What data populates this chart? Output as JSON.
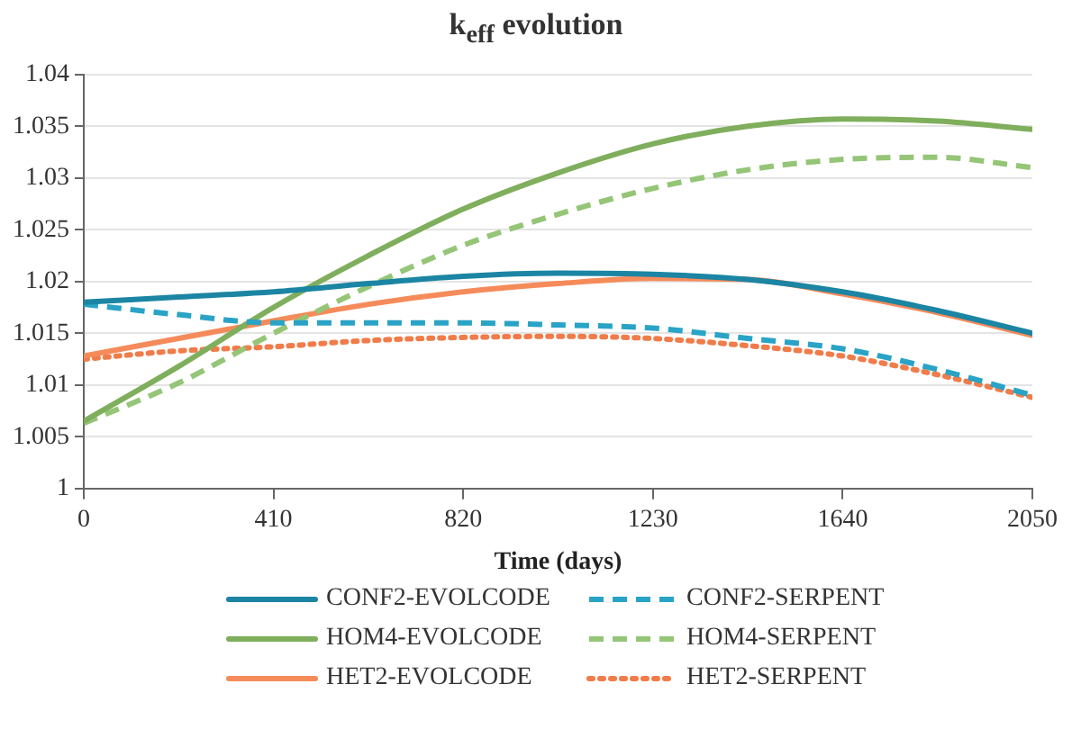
{
  "chart_data": {
    "type": "line",
    "title": "k$_{eff}$ evolution",
    "xlabel": "Time (days)",
    "x": [
      0,
      205,
      410,
      615,
      820,
      1025,
      1230,
      1435,
      1640,
      1845,
      2050
    ],
    "xlim": [
      0,
      2050
    ],
    "xticks": [
      0,
      410,
      820,
      1230,
      1640,
      2050
    ],
    "ylim": [
      1,
      1.04
    ],
    "yticks": [
      1,
      1.005,
      1.01,
      1.015,
      1.02,
      1.025,
      1.03,
      1.035,
      1.04
    ],
    "grid": "y",
    "legend": "bottom",
    "marker": "none",
    "series": [
      {
        "name": "CONF2-EVOLCODE",
        "color": "#1b85a3",
        "line_style": "solid",
        "values": [
          1.018,
          1.0185,
          1.019,
          1.0198,
          1.0205,
          1.0208,
          1.0207,
          1.0202,
          1.019,
          1.0172,
          1.015
        ]
      },
      {
        "name": "CONF2-SERPENT",
        "color": "#29a3c6",
        "line_style": "dashed",
        "values": [
          1.0178,
          1.0168,
          1.016,
          1.016,
          1.016,
          1.0158,
          1.0155,
          1.0145,
          1.0135,
          1.0115,
          1.009
        ]
      },
      {
        "name": "HOM4-EVOLCODE",
        "color": "#7fae5c",
        "line_style": "solid",
        "values": [
          1.0065,
          1.0118,
          1.0175,
          1.0225,
          1.027,
          1.0305,
          1.0333,
          1.035,
          1.0357,
          1.0355,
          1.0347
        ]
      },
      {
        "name": "HOM4-SERPENT",
        "color": "#95c577",
        "line_style": "dashed",
        "values": [
          1.0063,
          1.0102,
          1.015,
          1.0195,
          1.0235,
          1.0265,
          1.029,
          1.0308,
          1.0318,
          1.032,
          1.031
        ]
      },
      {
        "name": "HET2-EVOLCODE",
        "color": "#f58b5a",
        "line_style": "solid",
        "values": [
          1.0128,
          1.0145,
          1.0162,
          1.0178,
          1.019,
          1.0198,
          1.0203,
          1.0202,
          1.0188,
          1.017,
          1.0148
        ]
      },
      {
        "name": "HET2-SERPENT",
        "color": "#f07c4a",
        "line_style": "dotted",
        "values": [
          1.0125,
          1.0133,
          1.0137,
          1.0143,
          1.0146,
          1.0147,
          1.0145,
          1.0138,
          1.0128,
          1.011,
          1.0088
        ]
      }
    ]
  }
}
